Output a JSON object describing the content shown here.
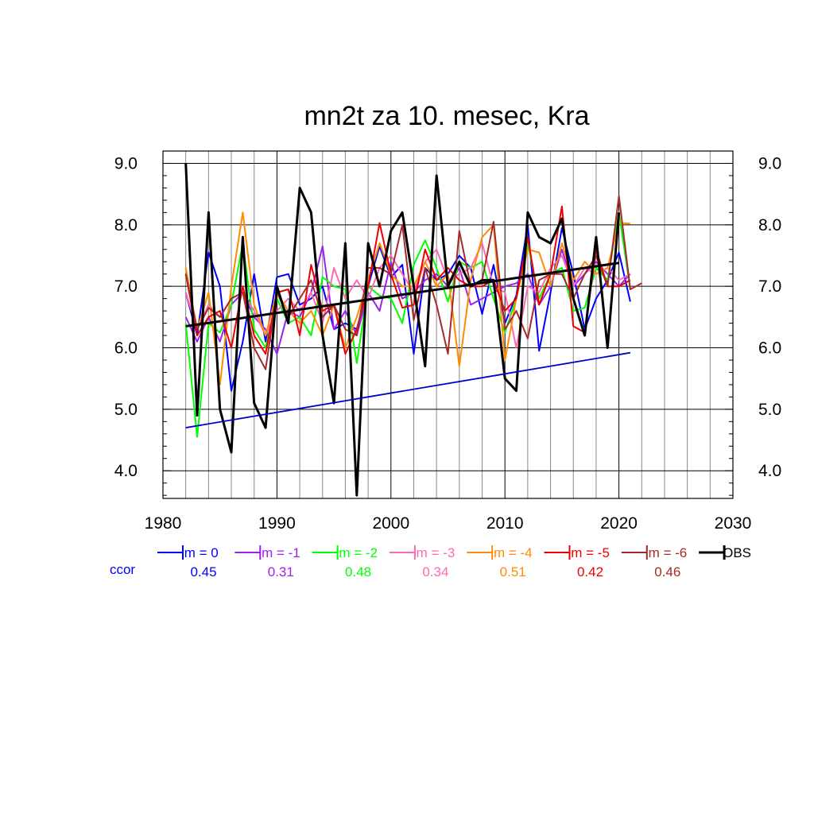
{
  "chart_data": {
    "type": "line",
    "title": "mn2t za 10. mesec, Kra",
    "xlabel": "",
    "ylabel": "",
    "xlim": [
      1980,
      2030
    ],
    "ylim": [
      3.55,
      9.2
    ],
    "x_ticks": [
      1980,
      1990,
      2000,
      2010,
      2020,
      2030
    ],
    "x_tick_labels": [
      "1980",
      "1990",
      "2000",
      "2010",
      "2020",
      "2030"
    ],
    "y_ticks": [
      4.0,
      5.0,
      6.0,
      7.0,
      8.0,
      9.0
    ],
    "y_tick_labels": [
      "4.0",
      "5.0",
      "6.0",
      "7.0",
      "8.0",
      "9.0"
    ],
    "grid": true,
    "ccor_label": "ccor",
    "series": [
      {
        "name": "lm = 0",
        "color": "#0000ff",
        "ccor": "0.45",
        "x_start": 1982,
        "values": [
          6.9,
          6.2,
          7.55,
          7.0,
          5.3,
          6.1,
          7.2,
          6.1,
          7.15,
          7.2,
          6.7,
          6.8,
          7.0,
          6.3,
          6.4,
          6.3,
          7.0,
          7.65,
          7.15,
          7.35,
          5.9,
          7.3,
          7.1,
          7.2,
          7.5,
          7.3,
          6.55,
          7.35,
          6.4,
          6.85,
          8.0,
          5.95,
          6.9,
          7.95,
          7.2,
          6.3,
          6.8,
          7.1,
          7.55,
          6.75
        ]
      },
      {
        "name": "lm = -1",
        "color": "#a020f0",
        "ccor": "0.31",
        "x_start": 1982,
        "values": [
          6.5,
          6.1,
          6.5,
          6.1,
          6.7,
          6.9,
          6.5,
          6.3,
          5.9,
          6.6,
          6.5,
          6.9,
          7.65,
          6.3,
          6.6,
          6.2,
          6.9,
          6.6,
          7.4,
          6.8,
          6.9,
          7.1,
          7.2,
          7.0,
          7.3,
          6.7,
          6.8,
          6.9,
          7.0,
          7.05,
          7.2,
          6.7,
          7.0,
          7.6,
          7.0,
          7.2,
          7.4,
          7.2,
          7.0,
          7.2
        ]
      },
      {
        "name": "lm = -2",
        "color": "#00ff00",
        "ccor": "0.48",
        "x_start": 1982,
        "values": [
          6.4,
          4.55,
          6.4,
          6.25,
          6.7,
          7.7,
          6.3,
          6.0,
          6.8,
          6.4,
          6.5,
          6.2,
          7.15,
          7.0,
          6.95,
          5.75,
          7.0,
          6.85,
          6.8,
          6.4,
          7.35,
          7.75,
          7.3,
          6.75,
          7.4,
          7.3,
          7.4,
          6.8,
          6.25,
          6.8,
          7.7,
          6.8,
          7.2,
          7.3,
          6.6,
          6.65,
          7.3,
          7.1,
          8.2,
          6.95
        ]
      },
      {
        "name": "lm = -3",
        "color": "#ff69b4",
        "ccor": "0.34",
        "x_start": 1982,
        "values": [
          6.9,
          6.3,
          6.7,
          6.5,
          6.8,
          6.9,
          6.6,
          6.2,
          6.6,
          6.8,
          6.6,
          6.9,
          6.4,
          7.3,
          6.8,
          7.1,
          6.8,
          7.3,
          7.5,
          7.2,
          6.9,
          7.4,
          7.6,
          7.1,
          7.2,
          7.3,
          7.7,
          7.0,
          6.9,
          6.0,
          7.0,
          6.9,
          7.3,
          7.5,
          7.0,
          7.3,
          7.2,
          7.3,
          7.1,
          7.2
        ]
      },
      {
        "name": "lm = -4",
        "color": "#ff8c00",
        "ccor": "0.51",
        "x_start": 1982,
        "values": [
          7.3,
          6.3,
          6.9,
          5.4,
          7.0,
          8.2,
          6.7,
          6.2,
          6.9,
          6.6,
          6.4,
          6.6,
          6.2,
          6.7,
          6.0,
          6.5,
          7.1,
          7.7,
          7.2,
          7.0,
          7.0,
          7.4,
          7.0,
          7.2,
          5.7,
          7.1,
          7.8,
          8.0,
          5.8,
          6.8,
          7.6,
          7.55,
          7.0,
          7.7,
          7.1,
          7.4,
          7.2,
          7.3,
          8.03,
          8.02
        ]
      },
      {
        "name": "lm = -5",
        "color": "#ee0000",
        "ccor": "0.42",
        "x_start": 1982,
        "values": [
          7.2,
          6.2,
          6.5,
          6.6,
          6.0,
          7.0,
          6.2,
          5.9,
          6.9,
          6.95,
          6.2,
          7.35,
          6.6,
          6.7,
          5.9,
          6.3,
          7.0,
          8.03,
          7.2,
          6.65,
          6.7,
          7.6,
          7.1,
          7.3,
          7.1,
          7.0,
          7.0,
          7.1,
          6.6,
          6.8,
          7.8,
          6.7,
          7.2,
          8.3,
          6.35,
          6.25,
          7.6,
          7.0,
          7.0,
          7.1
        ]
      },
      {
        "name": "lm = -6",
        "color": "#a52a2a",
        "ccor": "0.46",
        "x_start": 1982,
        "values": [
          7.2,
          6.3,
          6.65,
          6.5,
          6.8,
          6.9,
          6.0,
          5.65,
          6.9,
          6.5,
          6.8,
          7.1,
          6.5,
          6.7,
          6.3,
          6.2,
          7.3,
          7.3,
          7.2,
          8.0,
          6.45,
          7.3,
          6.7,
          5.9,
          7.9,
          7.0,
          7.1,
          8.05,
          6.3,
          6.6,
          6.15,
          7.1,
          7.2,
          7.2,
          6.8,
          7.2,
          7.5,
          7.0,
          8.47,
          6.95,
          7.05
        ]
      },
      {
        "name": "OBS",
        "color": "#000000",
        "ccor": "",
        "x_start": 1982,
        "values": [
          9.0,
          4.9,
          8.2,
          5.0,
          4.3,
          7.8,
          5.1,
          4.7,
          7.0,
          6.4,
          8.6,
          8.2,
          6.2,
          5.1,
          7.7,
          3.6,
          7.7,
          7.0,
          7.9,
          8.2,
          7.0,
          5.7,
          8.8,
          7.0,
          7.4,
          7.0,
          7.1,
          7.1,
          5.5,
          5.3,
          8.2,
          7.8,
          7.7,
          8.1,
          6.8,
          6.2,
          7.8,
          6.0,
          8.2
        ]
      }
    ],
    "trend_lines": [
      {
        "name": "trend-obs",
        "color": "#000000",
        "x": [
          1982,
          2020
        ],
        "y": [
          6.35,
          7.38
        ]
      },
      {
        "name": "trend-model",
        "color": "#0000cc",
        "x": [
          1982,
          2021
        ],
        "y": [
          4.7,
          5.92
        ]
      }
    ]
  }
}
